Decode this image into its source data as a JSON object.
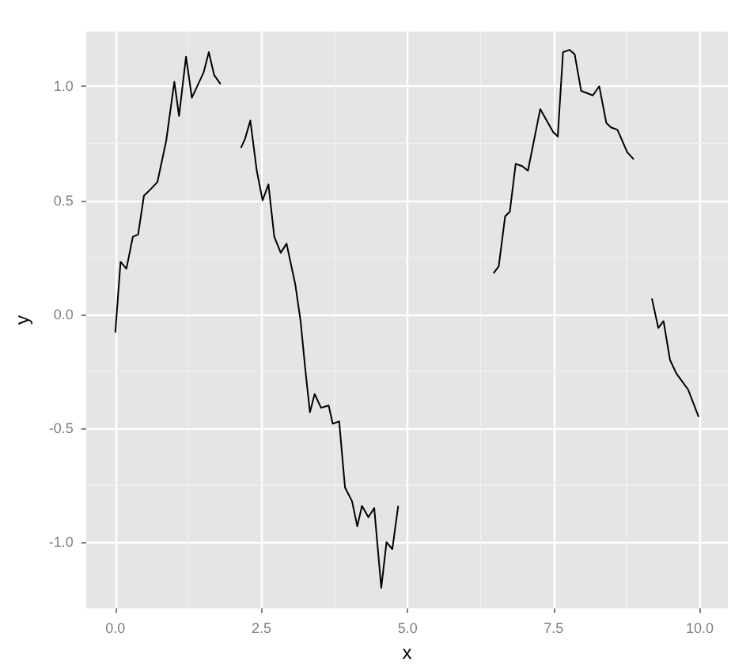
{
  "chart_data": {
    "type": "line",
    "xlabel": "x",
    "ylabel": "y",
    "xlim": [
      -0.5,
      10.48
    ],
    "ylim": [
      -1.29,
      1.24
    ],
    "xticks": [
      {
        "value": 0,
        "label": "0.0"
      },
      {
        "value": 2.5,
        "label": "2.5"
      },
      {
        "value": 5,
        "label": "5.0"
      },
      {
        "value": 7.5,
        "label": "7.5"
      },
      {
        "value": 10,
        "label": "10.0"
      }
    ],
    "yticks": [
      {
        "value": -1,
        "label": "-1.0"
      },
      {
        "value": -0.5,
        "label": "-0.5"
      },
      {
        "value": 0,
        "label": "0.0"
      },
      {
        "value": 0.5,
        "label": "0.5"
      },
      {
        "value": 1,
        "label": "1.0"
      }
    ],
    "grid": true,
    "marker": "none",
    "line_style": "solid",
    "series": [
      {
        "color": "#000000",
        "x": [
          0.0,
          0.09,
          0.19,
          0.3,
          0.39,
          0.49,
          0.61,
          0.72,
          0.87,
          1.01,
          1.09,
          1.21,
          1.31,
          1.51,
          1.6,
          1.69,
          1.8
        ],
        "values": [
          -0.08,
          0.23,
          0.2,
          0.34,
          0.35,
          0.52,
          0.55,
          0.58,
          0.76,
          1.02,
          0.87,
          1.13,
          0.95,
          1.06,
          1.15,
          1.05,
          1.01
        ]
      },
      {
        "color": "#000000",
        "x": [
          2.15,
          2.22,
          2.31,
          2.42,
          2.52,
          2.62,
          2.72,
          2.83,
          2.93,
          3.03,
          3.08,
          3.17,
          3.25,
          3.33,
          3.41,
          3.52,
          3.65,
          3.72,
          3.83,
          3.93,
          4.05,
          4.14,
          4.22,
          4.33,
          4.43,
          4.55,
          4.64,
          4.74,
          4.84
        ],
        "values": [
          0.73,
          0.77,
          0.85,
          0.63,
          0.5,
          0.57,
          0.34,
          0.27,
          0.31,
          0.19,
          0.13,
          -0.03,
          -0.24,
          -0.43,
          -0.35,
          -0.41,
          -0.4,
          -0.48,
          -0.47,
          -0.76,
          -0.82,
          -0.93,
          -0.84,
          -0.89,
          -0.85,
          -1.2,
          -1.0,
          -1.03,
          -0.84
        ]
      },
      {
        "color": "#000000",
        "x": [
          6.47,
          6.56,
          6.67,
          6.75,
          6.85,
          6.96,
          7.06,
          7.27,
          7.49,
          7.57,
          7.66,
          7.77,
          7.86,
          7.97,
          8.17,
          8.28,
          8.4,
          8.48,
          8.59,
          8.76,
          8.87
        ],
        "values": [
          0.18,
          0.21,
          0.43,
          0.45,
          0.66,
          0.65,
          0.63,
          0.9,
          0.8,
          0.78,
          1.15,
          1.16,
          1.14,
          0.98,
          0.96,
          1.0,
          0.84,
          0.82,
          0.81,
          0.71,
          0.68
        ]
      },
      {
        "color": "#000000",
        "x": [
          9.18,
          9.29,
          9.38,
          9.49,
          9.6,
          9.8,
          9.98
        ],
        "values": [
          0.07,
          -0.06,
          -0.03,
          -0.2,
          -0.26,
          -0.33,
          -0.45
        ]
      }
    ]
  }
}
